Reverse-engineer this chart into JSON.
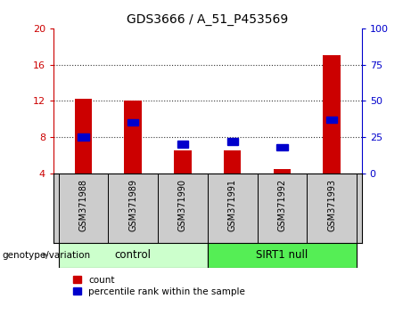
{
  "title": "GDS3666 / A_51_P453569",
  "samples": [
    "GSM371988",
    "GSM371989",
    "GSM371990",
    "GSM371991",
    "GSM371992",
    "GSM371993"
  ],
  "count_values": [
    12.2,
    12.0,
    6.5,
    6.5,
    4.5,
    17.0
  ],
  "percentile_values": [
    25,
    35,
    20,
    22,
    18,
    37
  ],
  "ylim_left": [
    4,
    20
  ],
  "ylim_right": [
    0,
    100
  ],
  "yticks_left": [
    4,
    8,
    12,
    16,
    20
  ],
  "yticks_right": [
    0,
    25,
    50,
    75,
    100
  ],
  "bar_color": "#cc0000",
  "percentile_color": "#0000cc",
  "bar_width": 0.35,
  "n_control": 3,
  "n_sirt1": 3,
  "control_label": "control",
  "sirt1_label": "SIRT1 null",
  "control_bg": "#ccffcc",
  "sirt1_bg": "#55ee55",
  "xlabel_area_bg": "#cccccc",
  "genotype_label": "genotype/variation",
  "legend_count": "count",
  "legend_percentile": "percentile rank within the sample",
  "left_tick_color": "#cc0000",
  "right_tick_color": "#0000cc",
  "grid_color": "#333333",
  "title_fontsize": 10,
  "tick_labelsize": 8,
  "sample_fontsize": 7,
  "genotype_fontsize": 8.5
}
